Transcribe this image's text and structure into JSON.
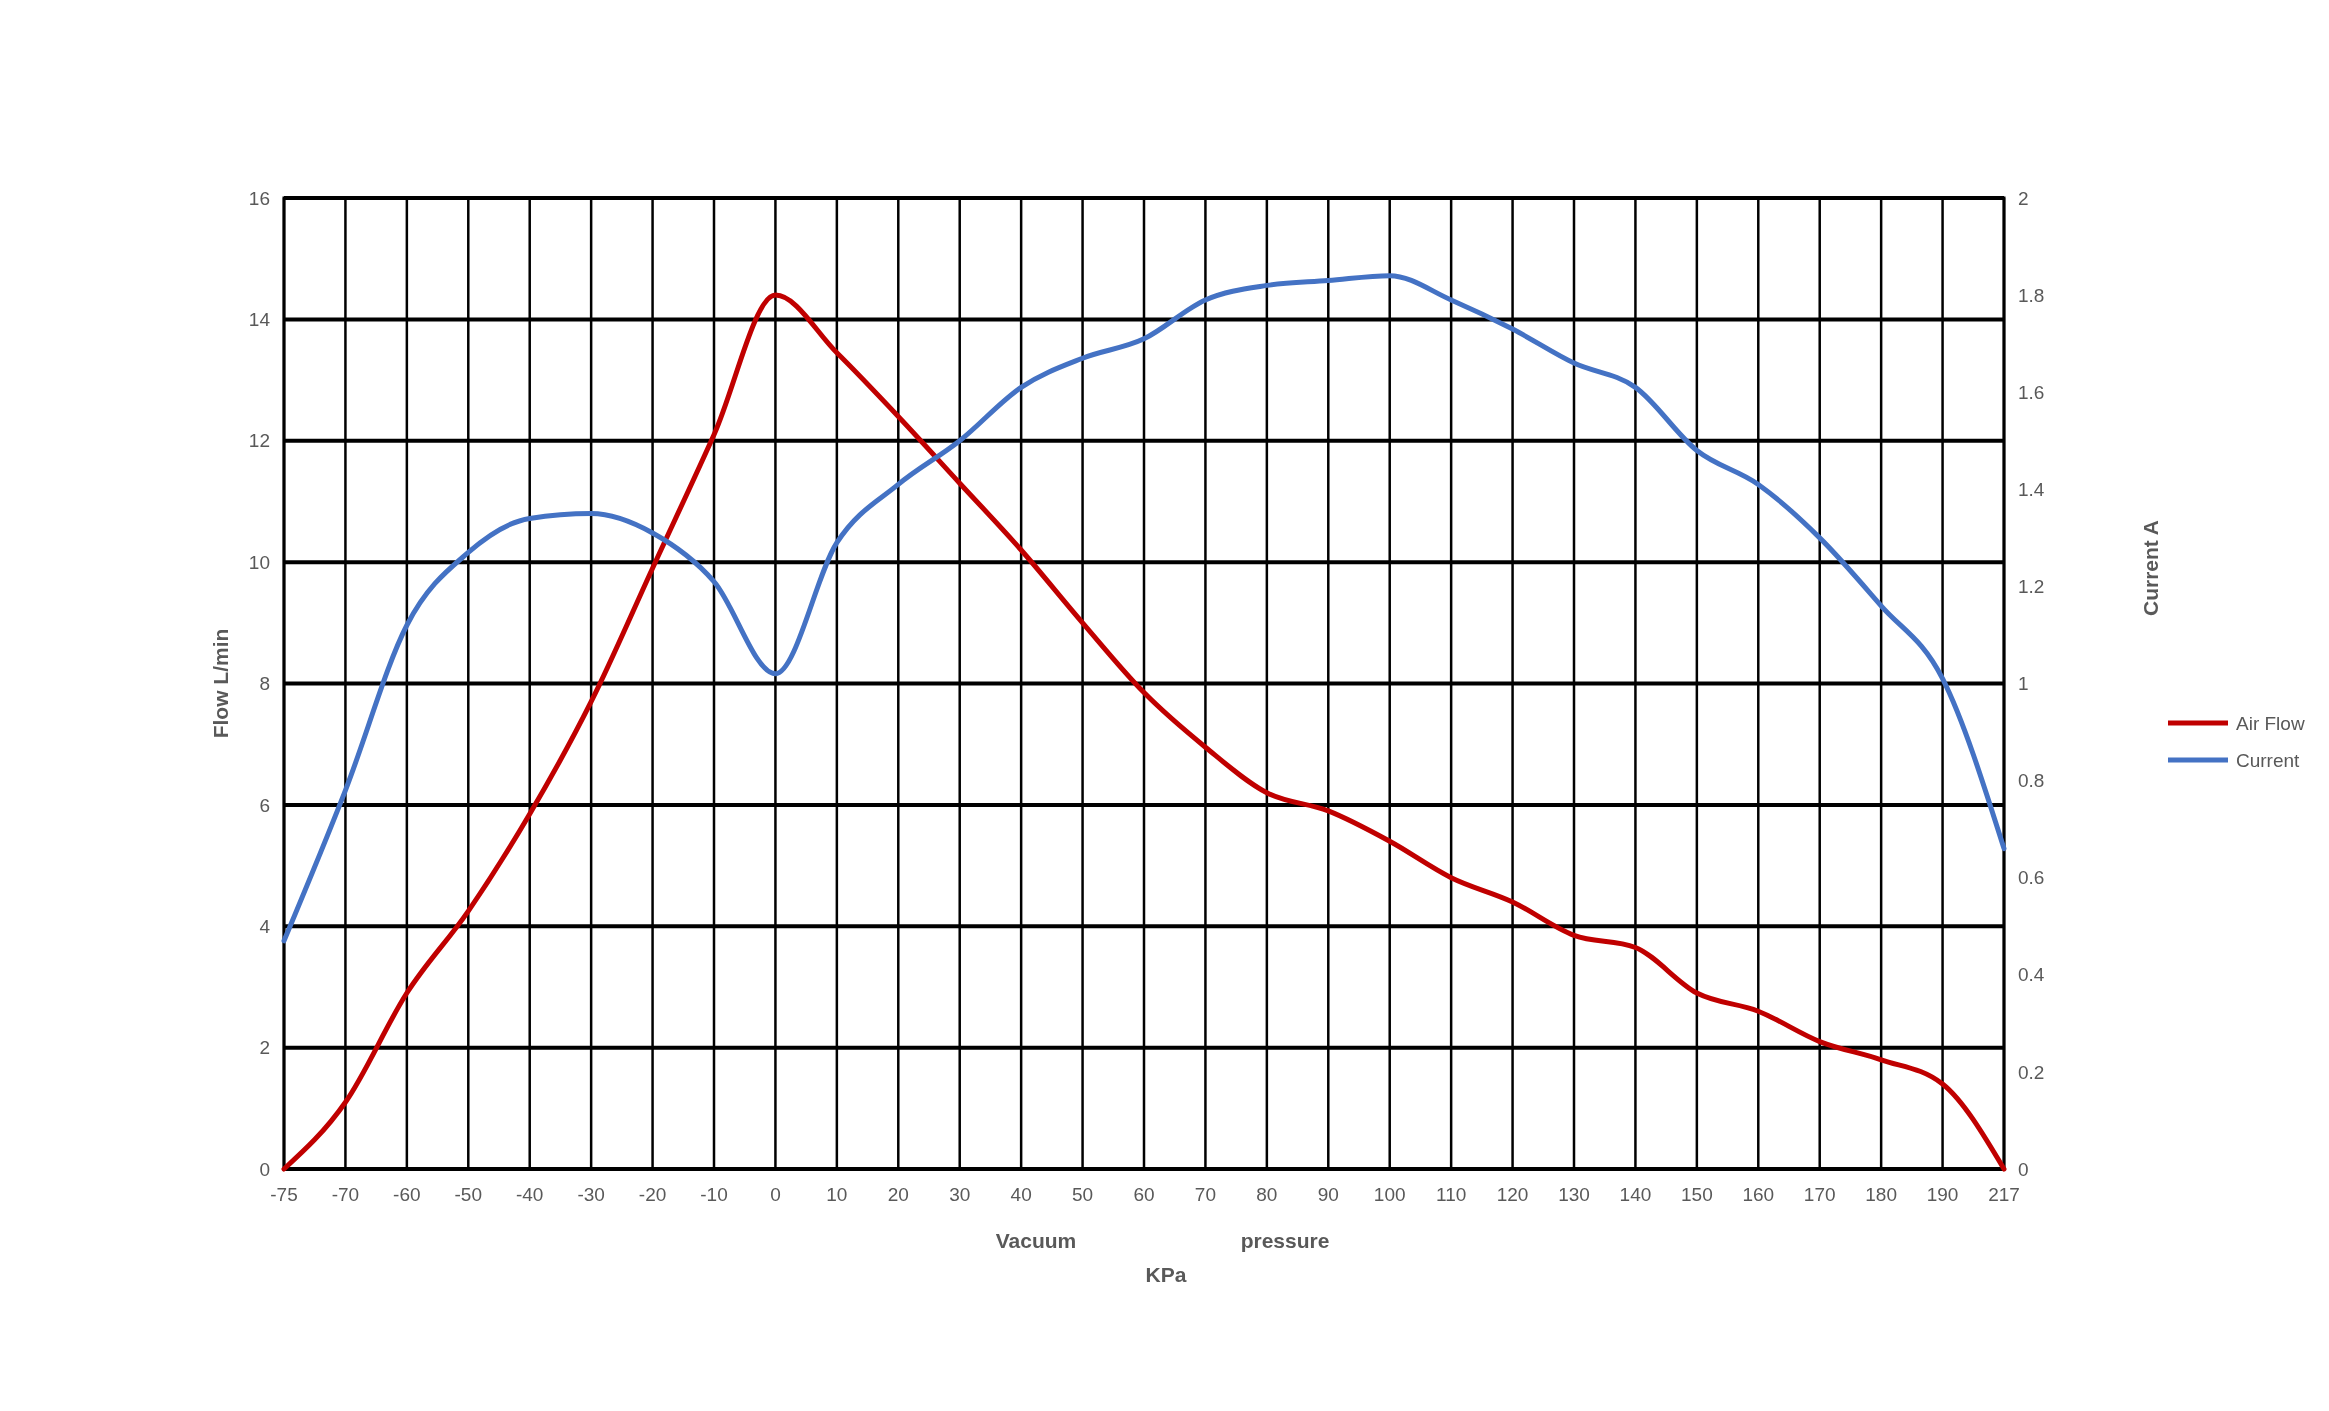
{
  "chart_data": {
    "type": "line",
    "xlabel": "KPa",
    "ylabel": "Flow  L/min",
    "y2label": "Current  A",
    "annotations": [
      "Vacuum",
      "pressure"
    ],
    "categories": [
      "-75",
      "-70",
      "-60",
      "-50",
      "-40",
      "-30",
      "-20",
      "-10",
      "0",
      "10",
      "20",
      "30",
      "40",
      "50",
      "60",
      "70",
      "80",
      "90",
      "100",
      "110",
      "120",
      "130",
      "140",
      "150",
      "160",
      "170",
      "180",
      "190",
      "217"
    ],
    "series": [
      {
        "name": "Air Flow",
        "color": "#c00000",
        "values": [
          0,
          1.1,
          2.9,
          4.25,
          5.85,
          7.7,
          9.9,
          12.1,
          14.4,
          13.45,
          12.4,
          11.3,
          10.2,
          9.0,
          7.85,
          6.95,
          6.2,
          5.9,
          5.4,
          4.8,
          4.4,
          3.85,
          3.65,
          2.9,
          2.6,
          2.1,
          1.8,
          1.4,
          0
        ]
      },
      {
        "name": "Current",
        "color": "#4472c4",
        "axis": "y2",
        "values": [
          0.47,
          0.78,
          1.12,
          1.27,
          1.34,
          1.35,
          1.31,
          1.21,
          1.02,
          1.29,
          1.41,
          1.5,
          1.61,
          1.67,
          1.71,
          1.79,
          1.82,
          1.83,
          1.84,
          1.79,
          1.73,
          1.66,
          1.61,
          1.48,
          1.41,
          1.3,
          1.16,
          1.01,
          0.66
        ]
      }
    ],
    "ylim": [
      0,
      16
    ],
    "yticks": [
      0,
      2,
      4,
      6,
      8,
      10,
      12,
      14,
      16
    ],
    "y2lim": [
      0,
      2
    ],
    "y2ticks": [
      0,
      0.2,
      0.4,
      0.6,
      0.8,
      1,
      1.2,
      1.4,
      1.6,
      1.8,
      2
    ],
    "grid": true,
    "legend": "right",
    "marker": "none",
    "line_style": "solid"
  }
}
